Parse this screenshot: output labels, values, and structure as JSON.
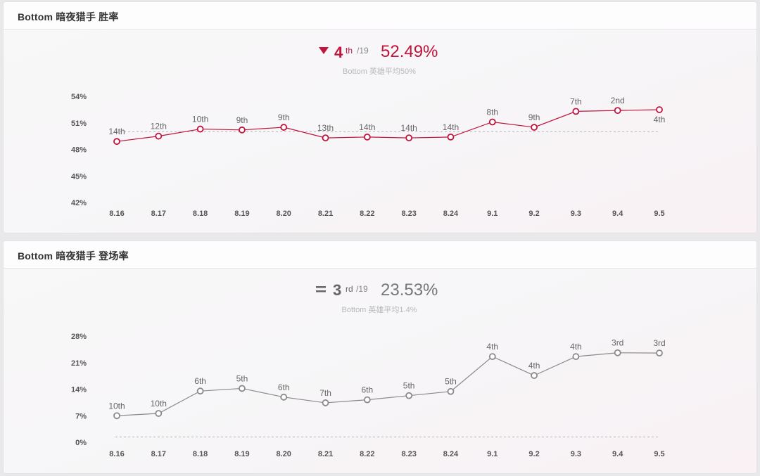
{
  "panels": [
    {
      "title": "Bottom 暗夜猎手 胜率",
      "trend_icon": "down-triangle-icon",
      "rank": "4",
      "rank_suffix": "th",
      "rank_total": "/19",
      "value": "52.49%",
      "subtitle": "Bottom 英雄平均50%",
      "accent": "#c0143c",
      "line_color": "#c0143c"
    },
    {
      "title": "Bottom 暗夜猎手 登场率",
      "trend_icon": "equals-icon",
      "rank": "3",
      "rank_suffix": "rd",
      "rank_total": "/19",
      "value": "23.53%",
      "subtitle": "Bottom 英雄平均1.4%",
      "accent": "#666666",
      "line_color": "#8a8a8a"
    }
  ],
  "chart_data": [
    {
      "type": "line",
      "title": "Bottom 暗夜猎手 胜率",
      "categories": [
        "8.16",
        "8.17",
        "8.18",
        "8.19",
        "8.20",
        "8.21",
        "8.22",
        "8.23",
        "8.24",
        "9.1",
        "9.2",
        "9.3",
        "9.4",
        "9.5"
      ],
      "values": [
        48.9,
        49.5,
        50.3,
        50.2,
        50.5,
        49.3,
        49.4,
        49.3,
        49.4,
        51.1,
        50.5,
        52.3,
        52.4,
        52.49
      ],
      "ranks": [
        "14th",
        "12th",
        "10th",
        "9th",
        "9th",
        "13th",
        "14th",
        "14th",
        "14th",
        "8th",
        "9th",
        "7th",
        "2nd",
        "4th"
      ],
      "rank_positions": [
        "above",
        "above",
        "above",
        "above",
        "above",
        "above",
        "above",
        "above",
        "above",
        "above",
        "above",
        "above",
        "above",
        "below"
      ],
      "yticks": [
        "54%",
        "51%",
        "48%",
        "45%",
        "42%"
      ],
      "ytick_values": [
        54,
        51,
        48,
        45,
        42
      ],
      "ylim": [
        42,
        54
      ],
      "average": 50,
      "xlabel": "",
      "ylabel": ""
    },
    {
      "type": "line",
      "title": "Bottom 暗夜猎手 登场率",
      "categories": [
        "8.16",
        "8.17",
        "8.18",
        "8.19",
        "8.20",
        "8.21",
        "8.22",
        "8.23",
        "8.24",
        "9.1",
        "9.2",
        "9.3",
        "9.4",
        "9.5"
      ],
      "values": [
        7.0,
        7.6,
        13.5,
        14.2,
        11.9,
        10.4,
        11.2,
        12.3,
        13.4,
        22.6,
        17.6,
        22.6,
        23.6,
        23.53
      ],
      "ranks": [
        "10th",
        "10th",
        "6th",
        "5th",
        "6th",
        "7th",
        "6th",
        "5th",
        "5th",
        "4th",
        "4th",
        "4th",
        "3rd",
        "3rd"
      ],
      "rank_positions": [
        "above",
        "above",
        "above",
        "above",
        "above",
        "above",
        "above",
        "above",
        "above",
        "above",
        "above",
        "above",
        "above",
        "above"
      ],
      "yticks": [
        "28%",
        "21%",
        "14%",
        "7%",
        "0%"
      ],
      "ytick_values": [
        28,
        21,
        14,
        7,
        0
      ],
      "ylim": [
        0,
        28
      ],
      "average": 1.4,
      "xlabel": "",
      "ylabel": ""
    }
  ]
}
